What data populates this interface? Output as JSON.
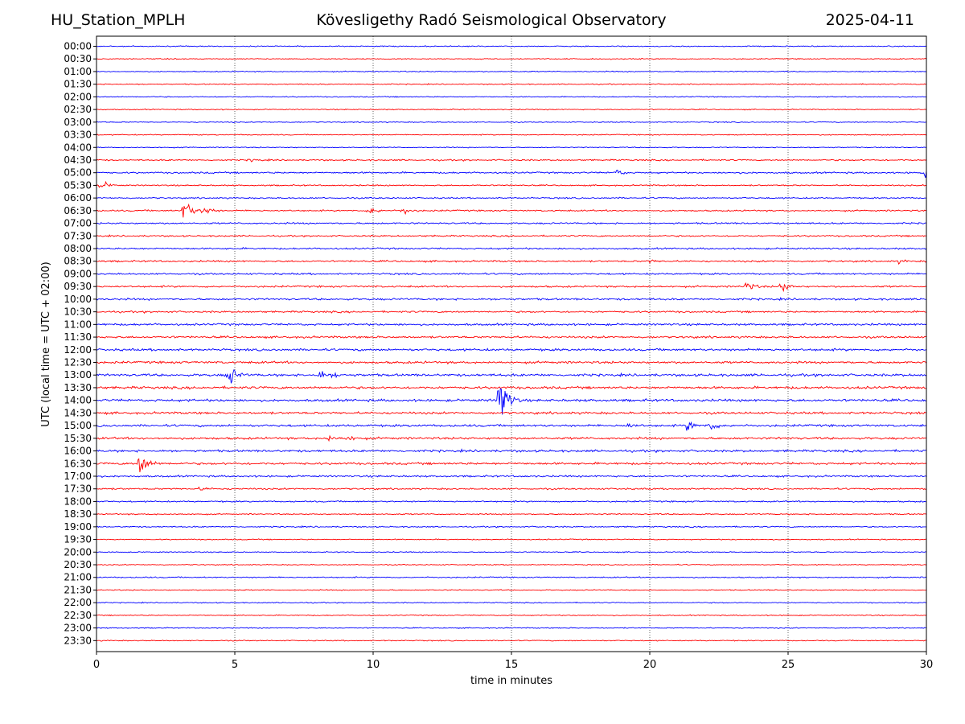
{
  "header": {
    "station": "HU_Station_MPLH",
    "observatory": "Kövesligethy Radó Seismological Observatory",
    "date": "2025-04-11"
  },
  "chart_data": {
    "type": "line",
    "title": "Kövesligethy Radó Seismological Observatory",
    "xlabel": "time in minutes",
    "ylabel": "UTC (local time = UTC + 02:00)",
    "xlim": [
      0,
      30
    ],
    "xticks": [
      0,
      5,
      10,
      15,
      20,
      25,
      30
    ],
    "grid": "vertical dotted lines at each x tick",
    "series_colors": [
      "#0000ff",
      "#ff0000"
    ],
    "rows": [
      "00:00",
      "00:30",
      "01:00",
      "01:30",
      "02:00",
      "02:30",
      "03:00",
      "03:30",
      "04:00",
      "04:30",
      "05:00",
      "05:30",
      "06:00",
      "06:30",
      "07:00",
      "07:30",
      "08:00",
      "08:30",
      "09:00",
      "09:30",
      "10:00",
      "10:30",
      "11:00",
      "11:30",
      "12:00",
      "12:30",
      "13:00",
      "13:30",
      "14:00",
      "14:30",
      "15:00",
      "15:30",
      "16:00",
      "16:30",
      "17:00",
      "17:30",
      "18:00",
      "18:30",
      "19:00",
      "19:30",
      "20:00",
      "20:30",
      "21:00",
      "21:30",
      "22:00",
      "22:30",
      "23:00",
      "23:30"
    ],
    "noise_level": [
      1,
      1,
      1,
      1,
      1,
      1,
      1,
      1,
      1,
      1.4,
      1.6,
      1.3,
      1.4,
      1.5,
      1.6,
      1.5,
      1.6,
      1.7,
      1.7,
      1.8,
      1.9,
      1.8,
      2,
      2,
      2.2,
      2.2,
      2.4,
      2.4,
      2.4,
      2.2,
      2.2,
      2.2,
      2.2,
      2.2,
      1.8,
      1.6,
      1.4,
      1.2,
      1.2,
      1,
      1,
      1,
      1.2,
      1,
      1,
      1,
      1,
      1
    ],
    "events": [
      {
        "row": "04:30",
        "minute": 5.6,
        "amplitude": 3
      },
      {
        "row": "05:00",
        "minute": 18.8,
        "amplitude": 7
      },
      {
        "row": "05:00",
        "minute": 29.9,
        "amplitude": 12
      },
      {
        "row": "05:30",
        "minute": 0.2,
        "amplitude": 10
      },
      {
        "row": "06:30",
        "minute": 3.2,
        "amplitude": 30
      },
      {
        "row": "06:30",
        "minute": 3.9,
        "amplitude": 12
      },
      {
        "row": "06:30",
        "minute": 9.9,
        "amplitude": 10
      },
      {
        "row": "06:30",
        "minute": 11.1,
        "amplitude": 9
      },
      {
        "row": "08:30",
        "minute": 20.0,
        "amplitude": 3
      },
      {
        "row": "08:30",
        "minute": 29.0,
        "amplitude": 3
      },
      {
        "row": "09:30",
        "minute": 23.5,
        "amplitude": 12
      },
      {
        "row": "09:30",
        "minute": 24.8,
        "amplitude": 12
      },
      {
        "row": "13:00",
        "minute": 4.8,
        "amplitude": 28
      },
      {
        "row": "13:00",
        "minute": 8.1,
        "amplitude": 10
      },
      {
        "row": "13:00",
        "minute": 8.6,
        "amplitude": 4
      },
      {
        "row": "14:00",
        "minute": 14.6,
        "amplitude": 80
      },
      {
        "row": "15:00",
        "minute": 19.2,
        "amplitude": 5
      },
      {
        "row": "15:00",
        "minute": 21.4,
        "amplitude": 12
      },
      {
        "row": "15:00",
        "minute": 22.2,
        "amplitude": 11
      },
      {
        "row": "15:30",
        "minute": 8.4,
        "amplitude": 6
      },
      {
        "row": "15:30",
        "minute": 9.1,
        "amplitude": 6
      },
      {
        "row": "16:30",
        "minute": 1.6,
        "amplitude": 35
      },
      {
        "row": "17:30",
        "minute": 3.8,
        "amplitude": 4
      }
    ]
  }
}
